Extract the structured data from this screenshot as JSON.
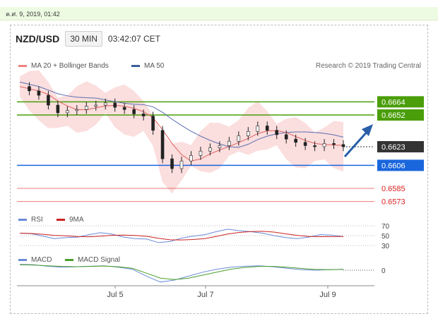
{
  "timestamp": "ค.ศ. 9, 2019, 01:42",
  "header": {
    "symbol": "NZD/USD",
    "timeframe": "30 MIN",
    "time": "03:42:07 CET"
  },
  "research": "Research © 2019 Trading Central",
  "legend_main": [
    {
      "label": "MA 20 + Bollinger Bands",
      "color": "#f08080"
    },
    {
      "label": "MA 50",
      "color": "#3a5f9a"
    }
  ],
  "legend_rsi": [
    {
      "label": "RSI",
      "color": "#6a8ad8"
    },
    {
      "label": "9MA",
      "color": "#cc2222"
    }
  ],
  "legend_macd": [
    {
      "label": "MACD",
      "color": "#6a8ad8"
    },
    {
      "label": "MACD Signal",
      "color": "#4a9e2a"
    }
  ],
  "chart_data": {
    "type": "line",
    "x_ticks": [
      "Jul 5",
      "Jul 7",
      "Jul 9"
    ],
    "ylim": [
      0.6565,
      0.669
    ],
    "price_series": [
      0.6678,
      0.6674,
      0.667,
      0.6661,
      0.6654,
      0.6656,
      0.6657,
      0.666,
      0.6661,
      0.6663,
      0.6659,
      0.6657,
      0.6653,
      0.6651,
      0.6638,
      0.6612,
      0.6603,
      0.661,
      0.6615,
      0.6619,
      0.6622,
      0.6624,
      0.6628,
      0.6633,
      0.6637,
      0.6642,
      0.6638,
      0.6634,
      0.663,
      0.6627,
      0.6624,
      0.6623,
      0.6626,
      0.6625,
      0.6623
    ],
    "levels": [
      {
        "value": 0.6664,
        "label": "0.6664",
        "color": "#4a9e0a",
        "style": "box"
      },
      {
        "value": 0.6652,
        "label": "0.6652",
        "color": "#4a9e0a",
        "style": "box"
      },
      {
        "value": 0.6623,
        "label": "0.6623",
        "color": "#333333",
        "style": "box"
      },
      {
        "value": 0.6606,
        "label": "0.6606",
        "color": "#1a66dd",
        "style": "box"
      },
      {
        "value": 0.6585,
        "label": "0.6585",
        "color": "#dd2222",
        "style": "text"
      },
      {
        "value": 0.6573,
        "label": "0.6573",
        "color": "#dd2222",
        "style": "text"
      }
    ],
    "rsi": {
      "levels": [
        "70",
        "50",
        "30"
      ],
      "values": [
        55,
        54,
        49,
        44,
        46,
        47,
        52,
        56,
        53,
        47,
        44,
        43,
        36,
        38,
        45,
        49,
        52,
        58,
        63,
        60,
        58,
        55,
        50,
        46,
        44,
        47,
        52,
        51,
        48
      ]
    },
    "macd": {
      "zero_label": "0",
      "values": [
        0.6,
        0.55,
        0.4,
        0.3,
        0.35,
        0.4,
        0.45,
        0.3,
        0.1,
        -0.6,
        -1.2,
        -1.0,
        -0.6,
        -0.2,
        0.1,
        0.3,
        0.4,
        0.45,
        0.35,
        0.2,
        0.05,
        0.0,
        0.05,
        0.1
      ],
      "signal": [
        0.55,
        0.52,
        0.45,
        0.38,
        0.36,
        0.38,
        0.42,
        0.35,
        0.2,
        -0.3,
        -0.8,
        -0.95,
        -0.8,
        -0.5,
        -0.2,
        0.1,
        0.28,
        0.38,
        0.38,
        0.3,
        0.18,
        0.08,
        0.05,
        0.08
      ]
    }
  }
}
